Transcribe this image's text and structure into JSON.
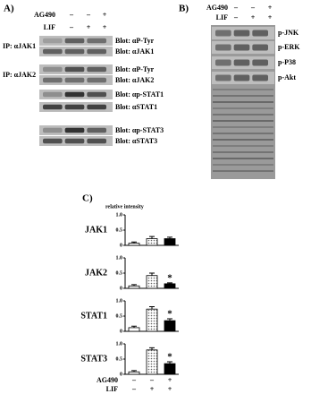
{
  "panel_a": {
    "label": "A)",
    "treatments": [
      {
        "label": "AG490",
        "signs": [
          "–",
          "–",
          "+"
        ]
      },
      {
        "label": "LIF",
        "signs": [
          "–",
          "+",
          "+"
        ]
      }
    ],
    "blocks": [
      {
        "ip": "IP: αJAK1",
        "blots": [
          "Blot: αP-Tyr",
          "Blot: αJAK1"
        ]
      },
      {
        "ip": "IP: αJAK2",
        "blots": [
          "Blot: αP-Tyr",
          "Blot: αJAK2"
        ]
      },
      {
        "blots": [
          "Blot: αp-STAT1",
          "Blot: αSTAT1"
        ]
      },
      {
        "blots": [
          "Blot: αp-STAT3",
          "Blot: αSTAT3"
        ]
      }
    ]
  },
  "panel_b": {
    "label": "B)",
    "treatments": [
      {
        "label": "AG490",
        "signs": [
          "–",
          "–",
          "+"
        ]
      },
      {
        "label": "LIF",
        "signs": [
          "–",
          "+",
          "+"
        ]
      }
    ],
    "blots": [
      "p-JNK",
      "p-ERK",
      "p-P38",
      "p-Akt"
    ]
  },
  "panel_c": {
    "label": "C)",
    "y_label": "relative intensity",
    "treatments": [
      {
        "label": "AG490",
        "signs": [
          "–",
          "–",
          "+"
        ]
      },
      {
        "label": "LIF",
        "signs": [
          "–",
          "+",
          "+"
        ]
      }
    ]
  },
  "chart_data": [
    {
      "type": "bar",
      "title": "JAK1",
      "values": [
        0.07,
        0.22,
        0.22
      ],
      "errors": [
        0.04,
        0.07,
        0.05
      ],
      "markers": [
        null,
        null,
        null
      ],
      "colors": [
        "#ffffff",
        "#d8d8d8",
        "#000000"
      ],
      "ylim": [
        0,
        1
      ],
      "yticks": [
        0,
        0.5,
        {
          "value": 1,
          "label": "1.0"
        }
      ]
    },
    {
      "type": "bar",
      "title": "JAK2",
      "values": [
        0.08,
        0.42,
        0.15
      ],
      "errors": [
        0.04,
        0.08,
        0.03
      ],
      "markers": [
        null,
        null,
        "*"
      ],
      "colors": [
        "#ffffff",
        "#d8d8d8",
        "#000000"
      ],
      "ylim": [
        0,
        1
      ],
      "yticks": [
        0,
        0.5,
        {
          "value": 1,
          "label": "1.0"
        }
      ]
    },
    {
      "type": "bar",
      "title": "STAT1",
      "values": [
        0.12,
        0.73,
        0.35
      ],
      "errors": [
        0.05,
        0.08,
        0.06
      ],
      "markers": [
        null,
        null,
        "*"
      ],
      "colors": [
        "#ffffff",
        "#d8d8d8",
        "#000000"
      ],
      "ylim": [
        0,
        1
      ],
      "yticks": [
        0,
        0.5,
        {
          "value": 1,
          "label": "1.0"
        }
      ]
    },
    {
      "type": "bar",
      "title": "STAT3",
      "values": [
        0.08,
        0.8,
        0.35
      ],
      "errors": [
        0.04,
        0.07,
        0.06
      ],
      "markers": [
        null,
        null,
        "*"
      ],
      "colors": [
        "#ffffff",
        "#d8d8d8",
        "#000000"
      ],
      "ylim": [
        0,
        1
      ],
      "yticks": [
        0,
        0.5,
        {
          "value": 1,
          "label": "1.0"
        }
      ]
    }
  ]
}
